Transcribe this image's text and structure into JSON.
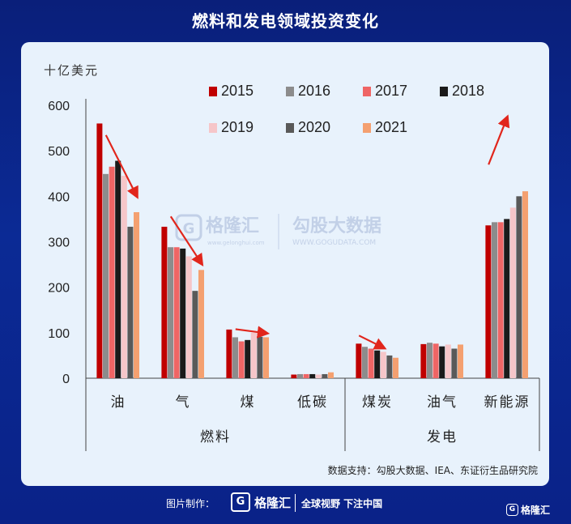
{
  "title": "燃料和发电领域投资变化",
  "chart_data": {
    "type": "bar",
    "unit_label": "十亿美元",
    "ylim": [
      0,
      600
    ],
    "yticks": [
      0,
      100,
      200,
      300,
      400,
      500,
      600
    ],
    "categories": [
      "油",
      "气",
      "煤",
      "低碳",
      "煤炭",
      "油气",
      "新能源"
    ],
    "groups": [
      {
        "label": "燃料",
        "categories": [
          "油",
          "气",
          "煤",
          "低碳"
        ]
      },
      {
        "label": "发电",
        "categories": [
          "煤炭",
          "油气",
          "新能源"
        ]
      }
    ],
    "series": [
      {
        "name": "2015",
        "color": "#c00000",
        "values": [
          560,
          333,
          107,
          8,
          76,
          75,
          336
        ]
      },
      {
        "name": "2016",
        "color": "#8c8c8c",
        "values": [
          449,
          288,
          90,
          9,
          69,
          78,
          343
        ]
      },
      {
        "name": "2017",
        "color": "#ef6565",
        "values": [
          465,
          288,
          81,
          9,
          65,
          76,
          343
        ]
      },
      {
        "name": "2018",
        "color": "#1a1a1a",
        "values": [
          478,
          285,
          84,
          9,
          61,
          70,
          350
        ]
      },
      {
        "name": "2019",
        "color": "#f6c6c9",
        "values": [
          445,
          268,
          100,
          8,
          58,
          74,
          375
        ]
      },
      {
        "name": "2020",
        "color": "#595959",
        "values": [
          333,
          192,
          91,
          9,
          50,
          65,
          400
        ]
      },
      {
        "name": "2021",
        "color": "#f4a070",
        "values": [
          365,
          238,
          90,
          13,
          45,
          74,
          411
        ]
      }
    ],
    "legend_position": "top-right",
    "grid": false,
    "source_label": "数据支持：勾股大数据、IEA、东证衍生品研究院"
  },
  "watermark": {
    "brand": "格隆汇",
    "site": "www.gelonghui.com",
    "brand2": "勾股大数据",
    "site2": "WWW.GOGUDATA.COM"
  },
  "footer": {
    "label": "图片制作：",
    "brand": "格隆汇",
    "slogan": "全球视野 下注中国",
    "corner_brand": "格隆汇"
  },
  "icons": {
    "logo": "G"
  }
}
